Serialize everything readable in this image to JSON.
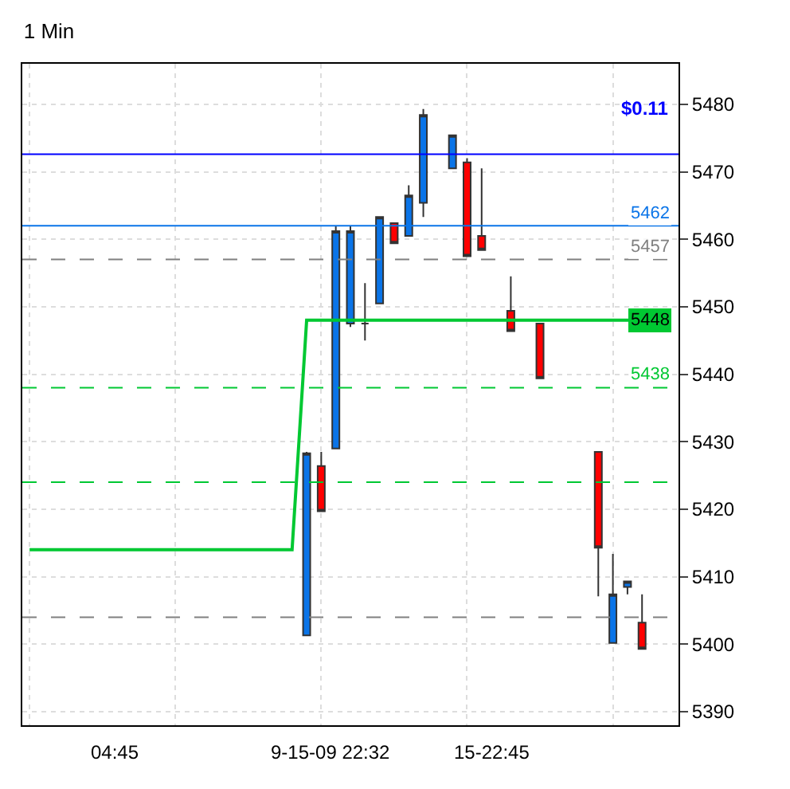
{
  "chart_data": {
    "type": "candlestick",
    "title": "1 Min",
    "categories": [
      null,
      null,
      null,
      null,
      null,
      null,
      null,
      null,
      null,
      null,
      null,
      null,
      null,
      null,
      null,
      null,
      null,
      null,
      null,
      null,
      null,
      null,
      null,
      null,
      null,
      null,
      null,
      null,
      null,
      null,
      null,
      null,
      null,
      null,
      null,
      null,
      null,
      null,
      null,
      null,
      null,
      null,
      null,
      null,
      null
    ],
    "ohlc": [
      null,
      null,
      null,
      null,
      null,
      null,
      null,
      null,
      null,
      null,
      null,
      null,
      null,
      null,
      null,
      null,
      null,
      null,
      null,
      [
        5401.3,
        5428.5,
        5401.3,
        5428.3
      ],
      [
        5426.4,
        5428.5,
        5419.7,
        5419.7
      ],
      [
        5429.0,
        5462.0,
        5429.0,
        5461.2
      ],
      [
        5447.5,
        5462.0,
        5447.0,
        5461.2
      ],
      [
        5447.5,
        5453.5,
        5445.0,
        5447.5
      ],
      [
        5450.5,
        5463.3,
        5450.5,
        5463.3
      ],
      [
        5462.4,
        5462.5,
        5459.4,
        5459.4
      ],
      [
        5460.5,
        5468.0,
        5460.5,
        5466.5
      ],
      [
        5465.4,
        5479.3,
        5463.3,
        5478.4
      ],
      null,
      [
        5470.5,
        5475.4,
        5470.5,
        5475.4
      ],
      [
        5471.4,
        5472.0,
        5457.5,
        5457.5
      ],
      [
        5460.5,
        5470.5,
        5458.4,
        5458.4
      ],
      null,
      [
        5449.4,
        5454.5,
        5446.4,
        5446.4
      ],
      null,
      [
        5447.5,
        5447.5,
        5439.4,
        5439.4
      ],
      null,
      null,
      null,
      [
        5428.5,
        5428.5,
        5407.1,
        5414.3
      ],
      [
        5400.2,
        5413.4,
        5400.2,
        5407.4
      ],
      [
        5408.5,
        5409.3,
        5407.4,
        5409.3
      ],
      [
        5403.2,
        5407.4,
        5399.3,
        5399.3
      ],
      null,
      null
    ],
    "colors": [
      null,
      null,
      null,
      null,
      null,
      null,
      null,
      null,
      null,
      null,
      null,
      null,
      null,
      null,
      null,
      null,
      null,
      null,
      null,
      "#0a74e8",
      "#ff0000",
      "#0a74e8",
      "#0a74e8",
      "#333333",
      "#0a74e8",
      "#ff0000",
      "#0a74e8",
      "#0a74e8",
      null,
      "#0a74e8",
      "#ff0000",
      "#ff0000",
      null,
      "#ff0000",
      null,
      "#ff0000",
      null,
      null,
      null,
      "#ff0000",
      "#0a74e8",
      "#0a74e8",
      "#ff0000",
      null,
      null
    ],
    "series": [
      {
        "type": "line",
        "color": "#00c832",
        "values": [
          5414,
          5414,
          5414,
          5414,
          5414,
          5414,
          5414,
          5414,
          5414,
          5414,
          5414,
          5414,
          5414,
          5414,
          5414,
          5414,
          5414,
          5414,
          5414,
          5448,
          5448,
          5448,
          5448,
          5448,
          5448,
          5448,
          5448,
          5448,
          5448,
          5448,
          5448,
          5448,
          5448,
          5448,
          5448,
          5448,
          5448,
          5448,
          5448,
          5448,
          5448,
          5448,
          5448,
          null,
          null
        ]
      }
    ],
    "ylim": [
      5388,
      5486
    ],
    "yticks": [
      5390,
      5400,
      5410,
      5420,
      5430,
      5440,
      5450,
      5460,
      5470,
      5480
    ],
    "ref_lines": [
      {
        "axis": "y",
        "value": 5462,
        "label": "5462",
        "color": "#0a74e8",
        "line_style": "solid"
      },
      {
        "axis": "y",
        "value": 5457,
        "label": "5457",
        "color": "#808080",
        "line_style": "dashed"
      },
      {
        "axis": "y",
        "value": 5438,
        "label": "5438",
        "color": "#00c832",
        "line_style": "dashed"
      },
      {
        "axis": "y",
        "value": 5424,
        "color": "#00c832",
        "line_style": "dashed"
      },
      {
        "axis": "y",
        "value": 5404,
        "color": "#808080",
        "line_style": "dashed"
      },
      {
        "axis": "y",
        "value": 5472.6,
        "color": "#0000ff",
        "line_style": "solid"
      }
    ],
    "annotations": [
      {
        "text": "5448",
        "y": 5448
      },
      "04:45",
      "9-15-09 22:32",
      "15-22:45",
      "$0.11"
    ],
    "grid": true
  }
}
